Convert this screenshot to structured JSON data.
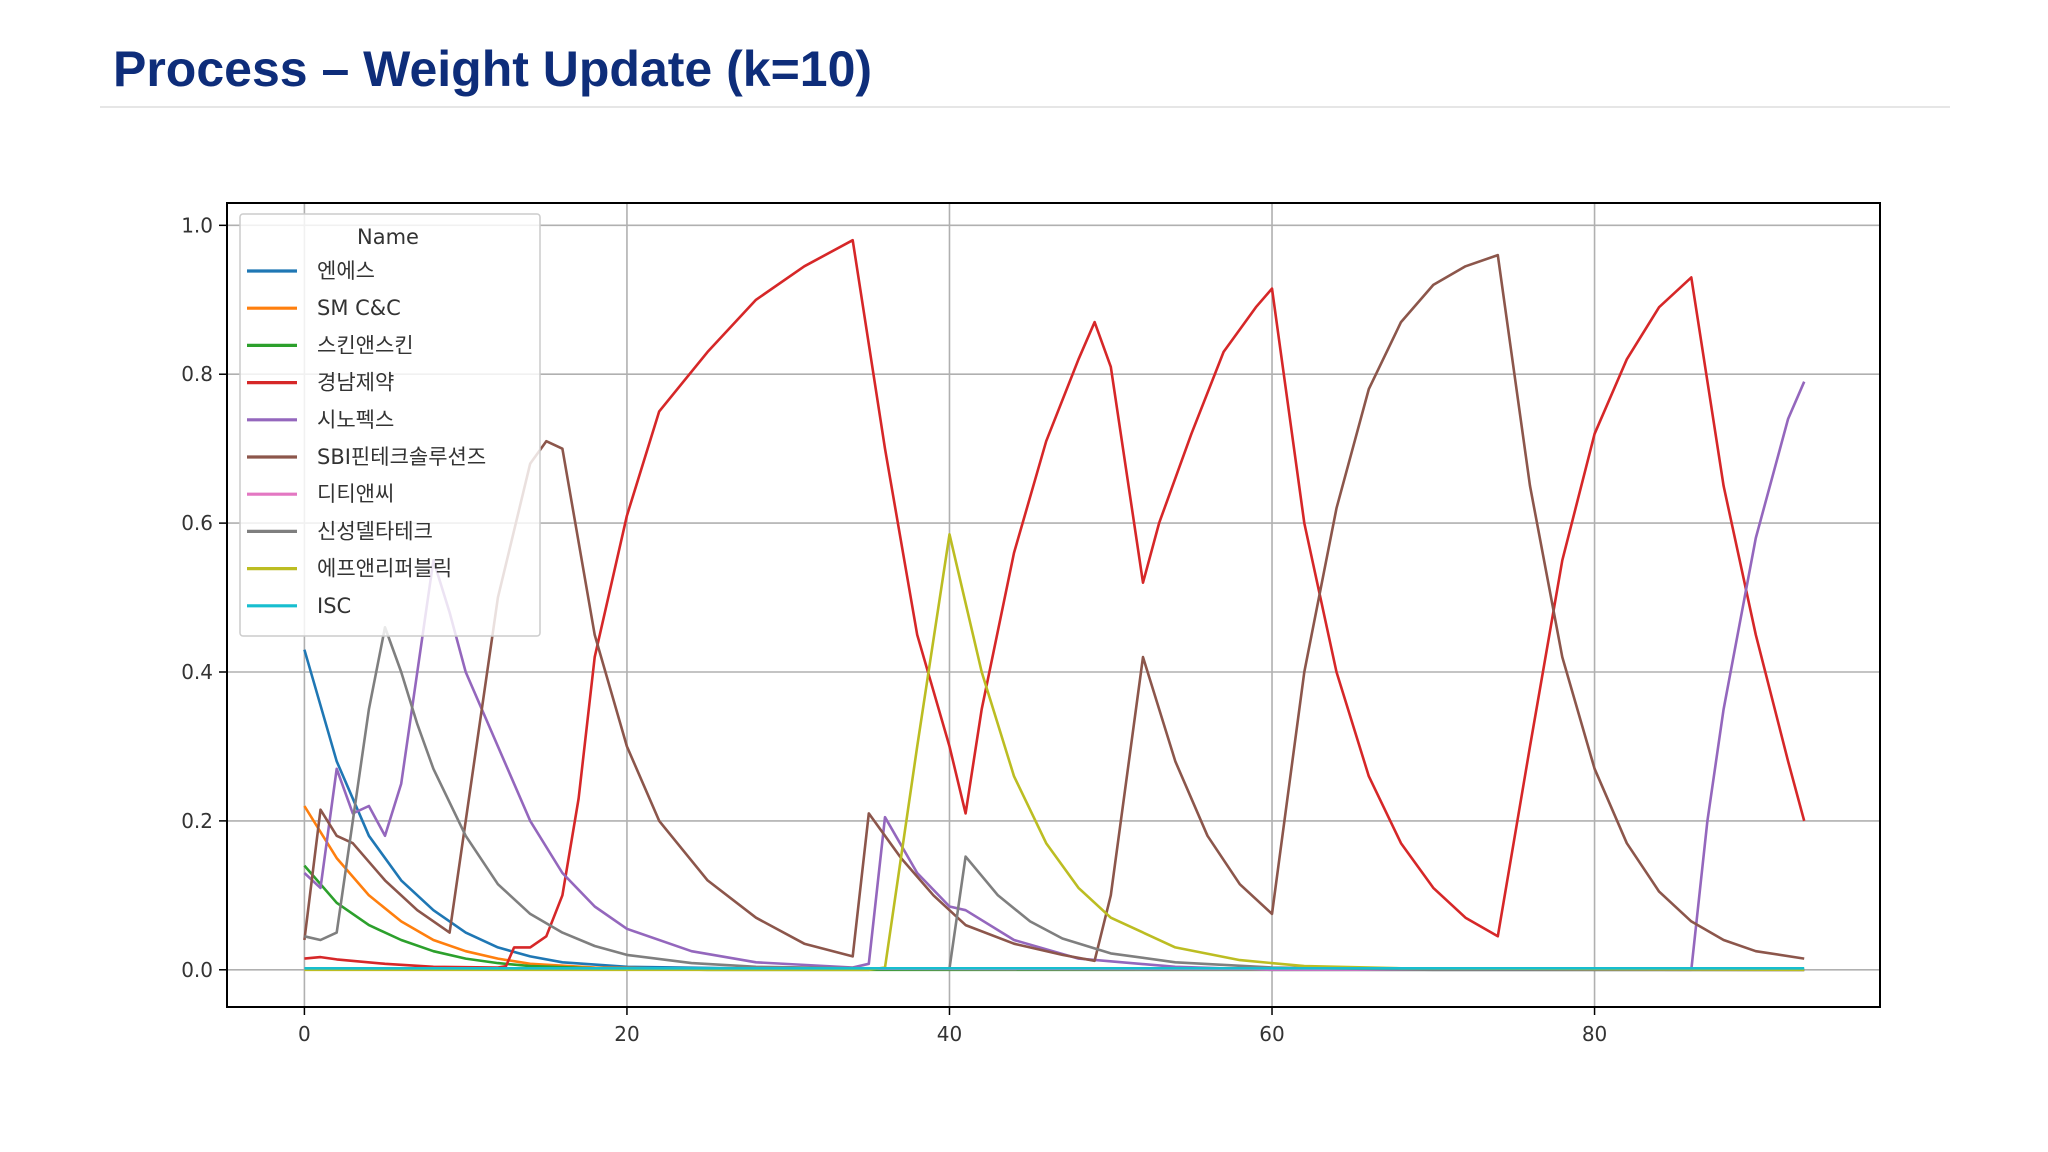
{
  "slide": {
    "title": "Process – Weight Update (k=10)"
  },
  "chart_data": {
    "type": "line",
    "title": "",
    "xlabel": "",
    "ylabel": "",
    "xlim": [
      -4.8,
      97.7
    ],
    "ylim": [
      -0.05,
      1.03
    ],
    "xticks": [
      0,
      20,
      40,
      60,
      80
    ],
    "yticks": [
      0.0,
      0.2,
      0.4,
      0.6,
      0.8,
      1.0
    ],
    "ytick_labels": [
      "0.0",
      "0.2",
      "0.4",
      "0.6",
      "0.8",
      "1.0"
    ],
    "grid": true,
    "legend": {
      "title": "Name",
      "placement": "top-left"
    },
    "series": [
      {
        "name": "엔에스",
        "color": "#1f77b4",
        "points": [
          [
            0,
            0.43
          ],
          [
            2,
            0.28
          ],
          [
            4,
            0.18
          ],
          [
            6,
            0.12
          ],
          [
            8,
            0.08
          ],
          [
            10,
            0.05
          ],
          [
            12,
            0.03
          ],
          [
            14,
            0.018
          ],
          [
            16,
            0.01
          ],
          [
            20,
            0.004
          ],
          [
            30,
            0.001
          ],
          [
            93,
            0.0
          ]
        ]
      },
      {
        "name": "SM C&C",
        "color": "#ff7f0e",
        "points": [
          [
            0,
            0.22
          ],
          [
            2,
            0.15
          ],
          [
            4,
            0.1
          ],
          [
            6,
            0.065
          ],
          [
            8,
            0.04
          ],
          [
            10,
            0.025
          ],
          [
            12,
            0.015
          ],
          [
            14,
            0.008
          ],
          [
            18,
            0.003
          ],
          [
            25,
            0.001
          ],
          [
            93,
            0.0
          ]
        ]
      },
      {
        "name": "스킨앤스킨",
        "color": "#2ca02c",
        "points": [
          [
            0,
            0.14
          ],
          [
            2,
            0.09
          ],
          [
            4,
            0.06
          ],
          [
            6,
            0.04
          ],
          [
            8,
            0.025
          ],
          [
            10,
            0.015
          ],
          [
            12,
            0.009
          ],
          [
            14,
            0.005
          ],
          [
            18,
            0.002
          ],
          [
            25,
            0.0
          ],
          [
            93,
            0.0
          ]
        ]
      },
      {
        "name": "경남제약",
        "color": "#d62728",
        "points": [
          [
            0,
            0.015
          ],
          [
            1,
            0.017
          ],
          [
            2,
            0.014
          ],
          [
            5,
            0.008
          ],
          [
            8,
            0.004
          ],
          [
            12,
            0.003
          ],
          [
            12.5,
            0.005
          ],
          [
            13,
            0.03
          ],
          [
            14,
            0.03
          ],
          [
            15,
            0.045
          ],
          [
            16,
            0.1
          ],
          [
            17,
            0.23
          ],
          [
            18,
            0.42
          ],
          [
            20,
            0.61
          ],
          [
            22,
            0.75
          ],
          [
            25,
            0.83
          ],
          [
            28,
            0.9
          ],
          [
            31,
            0.945
          ],
          [
            34,
            0.98
          ],
          [
            36,
            0.7
          ],
          [
            38,
            0.45
          ],
          [
            40,
            0.3
          ],
          [
            41,
            0.21
          ],
          [
            42,
            0.35
          ],
          [
            44,
            0.56
          ],
          [
            46,
            0.71
          ],
          [
            48,
            0.82
          ],
          [
            49,
            0.87
          ],
          [
            50,
            0.81
          ],
          [
            52,
            0.52
          ],
          [
            53,
            0.6
          ],
          [
            55,
            0.72
          ],
          [
            57,
            0.83
          ],
          [
            59,
            0.89
          ],
          [
            60,
            0.915
          ],
          [
            62,
            0.6
          ],
          [
            64,
            0.4
          ],
          [
            66,
            0.26
          ],
          [
            68,
            0.17
          ],
          [
            70,
            0.11
          ],
          [
            72,
            0.07
          ],
          [
            74,
            0.045
          ],
          [
            76,
            0.3
          ],
          [
            78,
            0.55
          ],
          [
            80,
            0.72
          ],
          [
            82,
            0.82
          ],
          [
            84,
            0.89
          ],
          [
            86,
            0.93
          ],
          [
            88,
            0.65
          ],
          [
            90,
            0.45
          ],
          [
            92,
            0.28
          ],
          [
            93,
            0.2
          ]
        ]
      },
      {
        "name": "시노펙스",
        "color": "#9467bd",
        "points": [
          [
            0,
            0.13
          ],
          [
            1,
            0.11
          ],
          [
            2,
            0.27
          ],
          [
            3,
            0.21
          ],
          [
            4,
            0.22
          ],
          [
            5,
            0.18
          ],
          [
            6,
            0.25
          ],
          [
            7,
            0.4
          ],
          [
            8,
            0.55
          ],
          [
            9,
            0.48
          ],
          [
            10,
            0.4
          ],
          [
            12,
            0.3
          ],
          [
            14,
            0.2
          ],
          [
            16,
            0.13
          ],
          [
            18,
            0.085
          ],
          [
            20,
            0.055
          ],
          [
            24,
            0.025
          ],
          [
            28,
            0.01
          ],
          [
            34,
            0.003
          ],
          [
            35,
            0.008
          ],
          [
            36,
            0.205
          ],
          [
            38,
            0.13
          ],
          [
            40,
            0.085
          ],
          [
            41,
            0.08
          ],
          [
            44,
            0.04
          ],
          [
            48,
            0.015
          ],
          [
            54,
            0.004
          ],
          [
            60,
            0.0
          ],
          [
            86,
            0.0
          ],
          [
            87,
            0.2
          ],
          [
            88,
            0.35
          ],
          [
            90,
            0.58
          ],
          [
            92,
            0.74
          ],
          [
            93,
            0.79
          ]
        ]
      },
      {
        "name": "SBI핀테크솔루션즈",
        "color": "#8c564b",
        "points": [
          [
            0,
            0.04
          ],
          [
            1,
            0.215
          ],
          [
            2,
            0.18
          ],
          [
            3,
            0.17
          ],
          [
            5,
            0.12
          ],
          [
            7,
            0.08
          ],
          [
            9,
            0.05
          ],
          [
            10,
            0.2
          ],
          [
            12,
            0.5
          ],
          [
            14,
            0.68
          ],
          [
            15,
            0.71
          ],
          [
            16,
            0.7
          ],
          [
            18,
            0.45
          ],
          [
            20,
            0.3
          ],
          [
            22,
            0.2
          ],
          [
            25,
            0.12
          ],
          [
            28,
            0.07
          ],
          [
            31,
            0.035
          ],
          [
            34,
            0.018
          ],
          [
            35,
            0.21
          ],
          [
            37,
            0.15
          ],
          [
            39,
            0.1
          ],
          [
            41,
            0.06
          ],
          [
            44,
            0.035
          ],
          [
            47,
            0.02
          ],
          [
            49,
            0.012
          ],
          [
            50,
            0.1
          ],
          [
            52,
            0.42
          ],
          [
            54,
            0.28
          ],
          [
            56,
            0.18
          ],
          [
            58,
            0.115
          ],
          [
            60,
            0.075
          ],
          [
            62,
            0.4
          ],
          [
            64,
            0.62
          ],
          [
            66,
            0.78
          ],
          [
            68,
            0.87
          ],
          [
            70,
            0.92
          ],
          [
            72,
            0.945
          ],
          [
            74,
            0.96
          ],
          [
            76,
            0.65
          ],
          [
            78,
            0.42
          ],
          [
            80,
            0.27
          ],
          [
            82,
            0.17
          ],
          [
            84,
            0.105
          ],
          [
            86,
            0.065
          ],
          [
            88,
            0.04
          ],
          [
            90,
            0.025
          ],
          [
            93,
            0.015
          ]
        ]
      },
      {
        "name": "디티앤씨",
        "color": "#e377c2",
        "points": [
          [
            0,
            0.002
          ],
          [
            93,
            0.0
          ]
        ]
      },
      {
        "name": "신성델타테크",
        "color": "#7f7f7f",
        "points": [
          [
            0,
            0.045
          ],
          [
            1,
            0.04
          ],
          [
            2,
            0.05
          ],
          [
            3,
            0.2
          ],
          [
            4,
            0.35
          ],
          [
            5,
            0.46
          ],
          [
            6,
            0.4
          ],
          [
            7,
            0.33
          ],
          [
            8,
            0.27
          ],
          [
            10,
            0.18
          ],
          [
            12,
            0.115
          ],
          [
            14,
            0.075
          ],
          [
            16,
            0.05
          ],
          [
            18,
            0.032
          ],
          [
            20,
            0.02
          ],
          [
            24,
            0.009
          ],
          [
            28,
            0.004
          ],
          [
            35,
            0.002
          ],
          [
            40,
            0.002
          ],
          [
            41,
            0.152
          ],
          [
            43,
            0.1
          ],
          [
            45,
            0.065
          ],
          [
            47,
            0.042
          ],
          [
            50,
            0.022
          ],
          [
            54,
            0.01
          ],
          [
            60,
            0.003
          ],
          [
            70,
            0.0
          ],
          [
            93,
            0.0
          ]
        ]
      },
      {
        "name": "에프앤리퍼블릭",
        "color": "#bcbd22",
        "points": [
          [
            0,
            0.0
          ],
          [
            35,
            0.0
          ],
          [
            36,
            0.003
          ],
          [
            38,
            0.3
          ],
          [
            40,
            0.585
          ],
          [
            42,
            0.4
          ],
          [
            44,
            0.26
          ],
          [
            46,
            0.17
          ],
          [
            48,
            0.11
          ],
          [
            50,
            0.07
          ],
          [
            54,
            0.03
          ],
          [
            58,
            0.013
          ],
          [
            62,
            0.005
          ],
          [
            68,
            0.002
          ],
          [
            93,
            0.0
          ]
        ]
      },
      {
        "name": "ISC",
        "color": "#17becf",
        "points": [
          [
            0,
            0.002
          ],
          [
            93,
            0.002
          ]
        ]
      }
    ]
  }
}
